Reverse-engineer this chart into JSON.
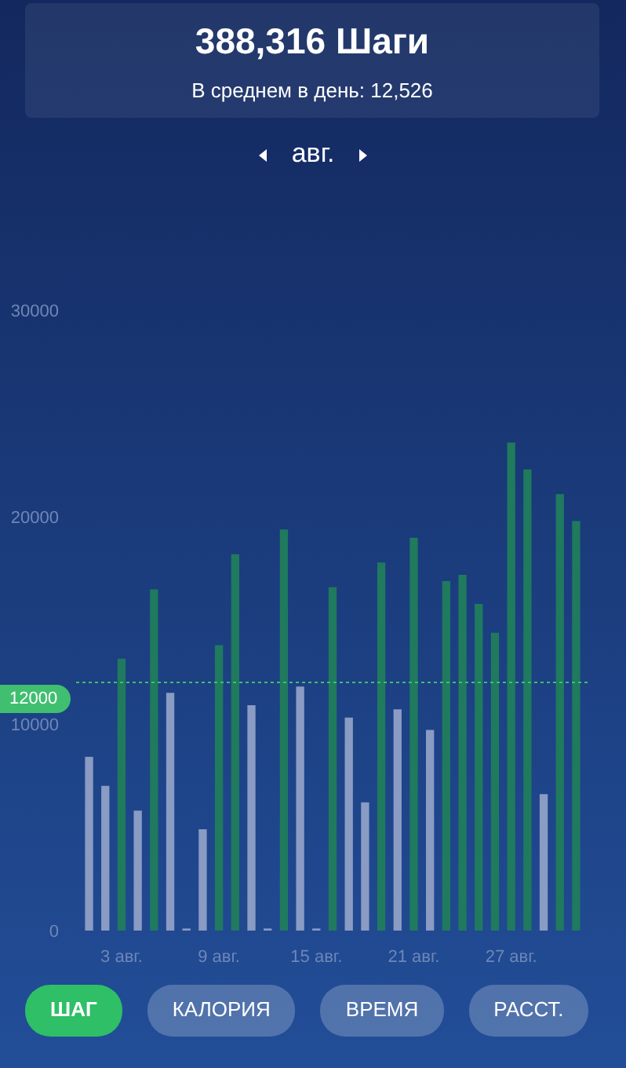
{
  "chart_data": {
    "type": "bar",
    "title": "388,316 Шаги",
    "subtitle": "В среднем в день:  12,526",
    "annotations": [
      "авг.",
      "ШАГ",
      "КАЛОРИЯ",
      "ВРЕМЯ",
      "РАССТ."
    ],
    "x": [
      1,
      2,
      3,
      4,
      5,
      6,
      7,
      8,
      9,
      10,
      11,
      12,
      13,
      14,
      15,
      16,
      17,
      18,
      19,
      20,
      21,
      22,
      23,
      24,
      25,
      26,
      27,
      28,
      29,
      30,
      31
    ],
    "values": [
      8400,
      7000,
      13150,
      5800,
      16500,
      11500,
      100,
      4900,
      13800,
      18200,
      10900,
      100,
      19400,
      11800,
      100,
      16600,
      10300,
      6200,
      17800,
      10700,
      19000,
      9700,
      16900,
      17200,
      15800,
      14400,
      23600,
      22300,
      6600,
      21100,
      19800
    ],
    "colors": [
      "#8a9bc4",
      "#8a9bc4",
      "#1f7a5e",
      "#8a9bc4",
      "#1f7a5e",
      "#8a9bc4",
      "#8a9bc4",
      "#8a9bc4",
      "#1f7a5e",
      "#1f7a5e",
      "#8a9bc4",
      "#8a9bc4",
      "#1f7a5e",
      "#8a9bc4",
      "#8a9bc4",
      "#1f7a5e",
      "#8a9bc4",
      "#8a9bc4",
      "#1f7a5e",
      "#8a9bc4",
      "#1f7a5e",
      "#8a9bc4",
      "#1f7a5e",
      "#1f7a5e",
      "#1f7a5e",
      "#1f7a5e",
      "#1f7a5e",
      "#1f7a5e",
      "#8a9bc4",
      "#1f7a5e",
      "#1f7a5e"
    ],
    "xlim": [
      0.2,
      31.8
    ],
    "xticks": [
      {
        "value": 3,
        "label": "3 авг."
      },
      {
        "value": 9,
        "label": "9 авг."
      },
      {
        "value": 15,
        "label": "15 авг."
      },
      {
        "value": 21,
        "label": "21 авг."
      },
      {
        "value": 27,
        "label": "27 авг."
      }
    ],
    "ylim": [
      0,
      30000
    ],
    "yticks": [
      0,
      10000,
      20000,
      30000
    ],
    "ref_lines": [
      {
        "axis": "y",
        "value": 12000,
        "label": "12000",
        "color": "#3fbf6f",
        "line_style": "dotted"
      }
    ],
    "grid": false
  }
}
